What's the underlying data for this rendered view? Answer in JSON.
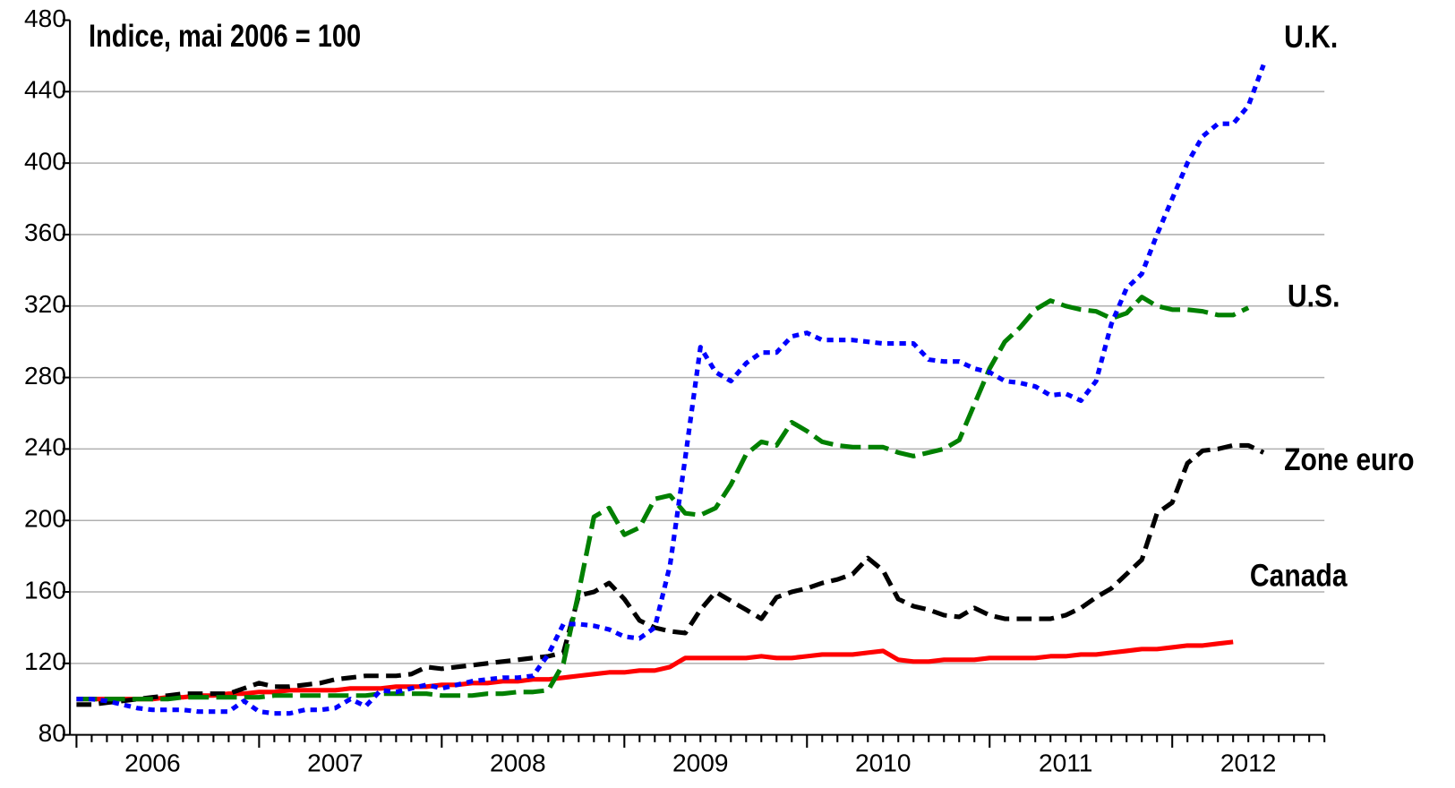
{
  "chart_data": {
    "type": "line",
    "subtitle": "Indice, mai 2006  = 100",
    "categories": [
      null,
      null,
      null,
      null,
      null,
      "2006",
      null,
      null,
      null,
      null,
      null,
      null,
      null,
      null,
      null,
      null,
      null,
      "2007",
      null,
      null,
      null,
      null,
      null,
      null,
      null,
      null,
      null,
      null,
      null,
      "2008",
      null,
      null,
      null,
      null,
      null,
      null,
      null,
      null,
      null,
      null,
      null,
      "2009",
      null,
      null,
      null,
      null,
      null,
      null,
      null,
      null,
      null,
      null,
      null,
      "2010",
      null,
      null,
      null,
      null,
      null,
      null,
      null,
      null,
      null,
      null,
      null,
      "2011",
      null,
      null,
      null,
      null,
      null,
      null,
      null,
      null,
      null,
      null,
      null,
      "2012",
      null,
      null,
      null,
      null,
      null
    ],
    "series": [
      {
        "name": "U.K.",
        "color": "#0000ff",
        "dash": "7,6",
        "values": [
          100,
          100,
          99,
          97,
          95,
          94,
          94,
          94,
          93,
          93,
          93,
          99,
          93,
          92,
          92,
          94,
          94,
          95,
          100,
          96,
          105,
          104,
          106,
          108,
          106,
          108,
          110,
          111,
          112,
          112,
          113,
          125,
          142,
          142,
          141,
          139,
          135,
          134,
          140,
          175,
          235,
          297,
          283,
          278,
          288,
          294,
          294,
          303,
          305,
          301,
          301,
          301,
          300,
          299,
          299,
          299,
          290,
          289,
          289,
          285,
          283,
          278,
          277,
          275,
          270,
          271,
          267,
          278,
          310,
          330,
          338,
          360,
          380,
          400,
          415,
          422,
          422,
          432,
          455,
          null,
          null,
          null,
          null
        ]
      },
      {
        "name": "U.S.",
        "color": "#008000",
        "dash": "22,8",
        "values": [
          100,
          100,
          100,
          100,
          100,
          100,
          100,
          101,
          101,
          101,
          101,
          101,
          101,
          102,
          102,
          102,
          102,
          102,
          102,
          102,
          103,
          103,
          103,
          103,
          102,
          102,
          102,
          103,
          103,
          104,
          104,
          105,
          120,
          160,
          202,
          207,
          192,
          196,
          212,
          214,
          204,
          203,
          207,
          220,
          237,
          244,
          242,
          255,
          250,
          244,
          242,
          241,
          241,
          241,
          238,
          236,
          238,
          240,
          245,
          265,
          285,
          300,
          308,
          318,
          323,
          320,
          318,
          317,
          313,
          316,
          325,
          320,
          318,
          318,
          317,
          315,
          315,
          319,
          null,
          null,
          null,
          null,
          null
        ]
      },
      {
        "name": "Zone euro",
        "color": "#000000",
        "dash": "16,8",
        "values": [
          97,
          97,
          98,
          99,
          100,
          101,
          102,
          103,
          103,
          103,
          103,
          106,
          109,
          107,
          107,
          108,
          109,
          111,
          112,
          113,
          113,
          113,
          114,
          118,
          117,
          118,
          119,
          120,
          121,
          122,
          123,
          124,
          126,
          158,
          160,
          165,
          156,
          144,
          140,
          138,
          137,
          150,
          160,
          155,
          150,
          145,
          157,
          160,
          162,
          165,
          167,
          170,
          179,
          172,
          156,
          152,
          150,
          147,
          146,
          151,
          147,
          145,
          145,
          145,
          145,
          147,
          151,
          157,
          162,
          170,
          178,
          204,
          210,
          232,
          239,
          240,
          242,
          242,
          238,
          null,
          null,
          null,
          null
        ]
      },
      {
        "name": "Canada",
        "color": "#ff0000",
        "dash": "none",
        "values": [
          100,
          100,
          100,
          100,
          100,
          100,
          101,
          101,
          102,
          102,
          103,
          103,
          104,
          104,
          105,
          105,
          105,
          105,
          106,
          106,
          106,
          107,
          107,
          107,
          108,
          108,
          109,
          109,
          110,
          110,
          111,
          111,
          112,
          113,
          114,
          115,
          115,
          116,
          116,
          118,
          123,
          123,
          123,
          123,
          123,
          124,
          123,
          123,
          124,
          125,
          125,
          125,
          126,
          127,
          122,
          121,
          121,
          122,
          122,
          122,
          123,
          123,
          123,
          123,
          124,
          124,
          125,
          125,
          126,
          127,
          128,
          128,
          129,
          130,
          130,
          131,
          132,
          null,
          null,
          null,
          null,
          null,
          null
        ]
      }
    ],
    "ylim": [
      80,
      480
    ],
    "yticks": [
      80,
      120,
      160,
      200,
      240,
      280,
      320,
      360,
      400,
      440,
      480
    ],
    "grid": true
  }
}
